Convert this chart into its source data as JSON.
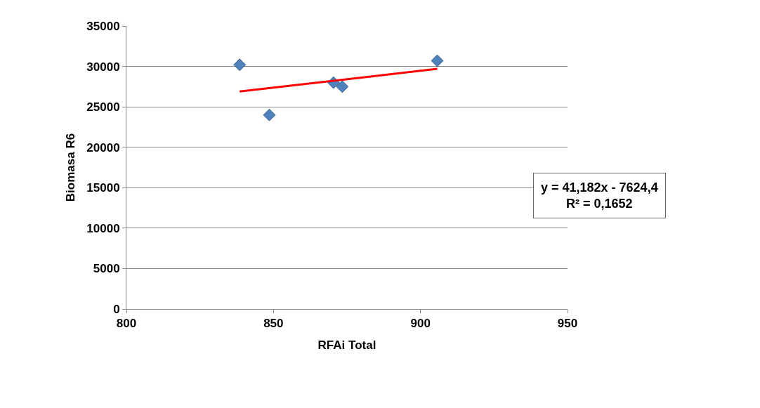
{
  "chart_data": {
    "type": "scatter",
    "xlabel": "RFAi Total",
    "ylabel": "Biomasa R6",
    "series": [
      {
        "color": "#4f81bd",
        "marker": "diamond",
        "x": [
          838.5,
          848.6,
          870.4,
          873.4,
          905.7
        ],
        "values": [
          30200,
          24000,
          28000,
          27500,
          30700
        ]
      },
      {
        "type": "line",
        "color": "#ff0000",
        "x": [
          838.5,
          905.7
        ],
        "values": [
          26900,
          29700
        ]
      }
    ],
    "xlim": [
      800,
      950
    ],
    "xticks": [
      800,
      850,
      900,
      950
    ],
    "ylim": [
      0,
      35000
    ],
    "yticks": [
      0,
      5000,
      10000,
      15000,
      20000,
      25000,
      30000,
      35000
    ],
    "grid": "y",
    "annotations": [
      "y = 41,182x - 7624,4\nR² = 0,1652"
    ]
  }
}
